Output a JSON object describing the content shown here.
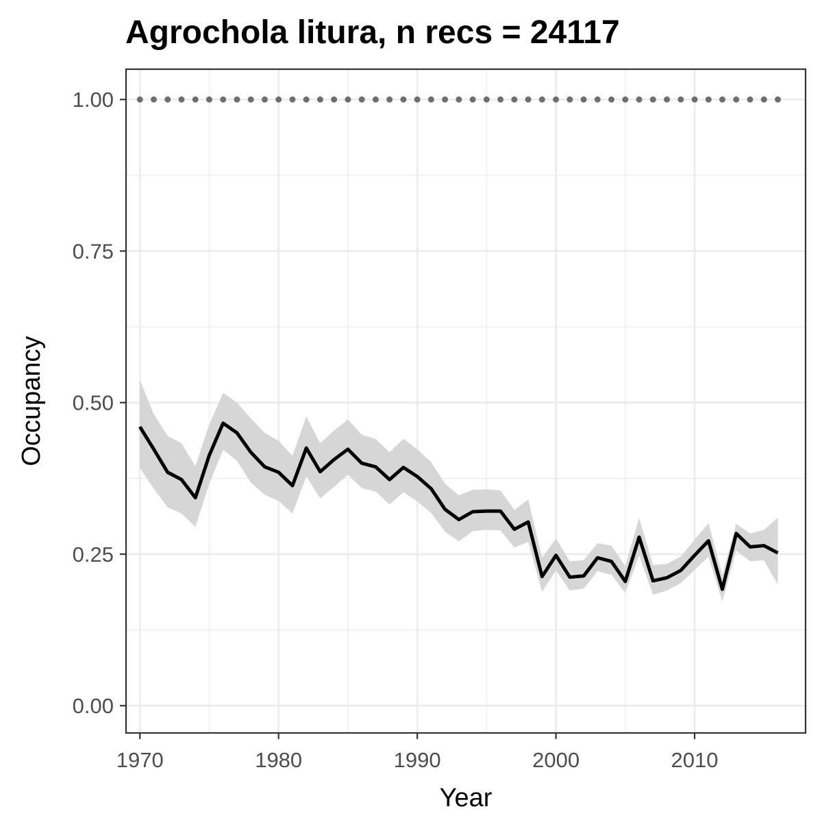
{
  "chart_data": {
    "type": "line",
    "title": "Agrochola litura, n recs = 24117",
    "xlabel": "Year",
    "ylabel": "Occupancy",
    "xlim": [
      1969,
      2018
    ],
    "ylim": [
      -0.045,
      1.05
    ],
    "x_ticks": [
      1970,
      1980,
      1990,
      2000,
      2010
    ],
    "x_tick_labels": [
      "1970",
      "1980",
      "1990",
      "2000",
      "2010"
    ],
    "y_ticks": [
      0,
      0.25,
      0.5,
      0.75,
      1.0
    ],
    "y_tick_labels": [
      "0.00",
      "0.25",
      "0.50",
      "0.75",
      "1.00"
    ],
    "grid": true,
    "colors": {
      "line": "#000000",
      "ribbon": "#d6d6d6",
      "reference_points": "#6e6e6e",
      "grid": "#ebebeb",
      "panel_border": "#333333"
    },
    "x": [
      1970,
      1971,
      1972,
      1973,
      1974,
      1975,
      1976,
      1977,
      1978,
      1979,
      1980,
      1981,
      1982,
      1983,
      1984,
      1985,
      1986,
      1987,
      1988,
      1989,
      1990,
      1991,
      1992,
      1993,
      1994,
      1995,
      1996,
      1997,
      1998,
      1999,
      2000,
      2001,
      2002,
      2003,
      2004,
      2005,
      2006,
      2007,
      2008,
      2009,
      2010,
      2011,
      2012,
      2013,
      2014,
      2015,
      2016
    ],
    "series": [
      {
        "values": [
          0.46,
          0.423,
          0.385,
          0.373,
          0.343,
          0.413,
          0.466,
          0.45,
          0.418,
          0.394,
          0.385,
          0.363,
          0.425,
          0.386,
          0.406,
          0.423,
          0.4,
          0.394,
          0.373,
          0.393,
          0.378,
          0.358,
          0.324,
          0.307,
          0.32,
          0.321,
          0.321,
          0.291,
          0.303,
          0.213,
          0.248,
          0.212,
          0.214,
          0.244,
          0.238,
          0.205,
          0.278,
          0.206,
          0.211,
          0.223,
          0.248,
          0.272,
          0.192,
          0.284,
          0.262,
          0.264,
          0.252
        ],
        "lower": [
          0.392,
          0.358,
          0.327,
          0.317,
          0.295,
          0.366,
          0.422,
          0.404,
          0.368,
          0.348,
          0.338,
          0.317,
          0.378,
          0.342,
          0.361,
          0.381,
          0.359,
          0.353,
          0.332,
          0.352,
          0.337,
          0.318,
          0.287,
          0.271,
          0.288,
          0.29,
          0.289,
          0.261,
          0.27,
          0.188,
          0.223,
          0.19,
          0.193,
          0.222,
          0.216,
          0.186,
          0.248,
          0.183,
          0.19,
          0.202,
          0.224,
          0.246,
          0.172,
          0.256,
          0.238,
          0.24,
          0.2
        ],
        "upper": [
          0.537,
          0.481,
          0.445,
          0.433,
          0.395,
          0.464,
          0.516,
          0.5,
          0.474,
          0.45,
          0.437,
          0.412,
          0.477,
          0.433,
          0.454,
          0.472,
          0.447,
          0.44,
          0.418,
          0.44,
          0.423,
          0.402,
          0.366,
          0.347,
          0.356,
          0.357,
          0.355,
          0.323,
          0.34,
          0.244,
          0.276,
          0.238,
          0.24,
          0.268,
          0.264,
          0.23,
          0.31,
          0.232,
          0.234,
          0.246,
          0.274,
          0.301,
          0.216,
          0.3,
          0.284,
          0.29,
          0.31
        ]
      }
    ],
    "reference_points": {
      "x": [
        1970,
        1971,
        1972,
        1973,
        1974,
        1975,
        1976,
        1977,
        1978,
        1979,
        1980,
        1981,
        1982,
        1983,
        1984,
        1985,
        1986,
        1987,
        1988,
        1989,
        1990,
        1991,
        1992,
        1993,
        1994,
        1995,
        1996,
        1997,
        1998,
        1999,
        2000,
        2001,
        2002,
        2003,
        2004,
        2005,
        2006,
        2007,
        2008,
        2009,
        2010,
        2011,
        2012,
        2013,
        2014,
        2015,
        2016
      ],
      "y": 1.0
    }
  }
}
